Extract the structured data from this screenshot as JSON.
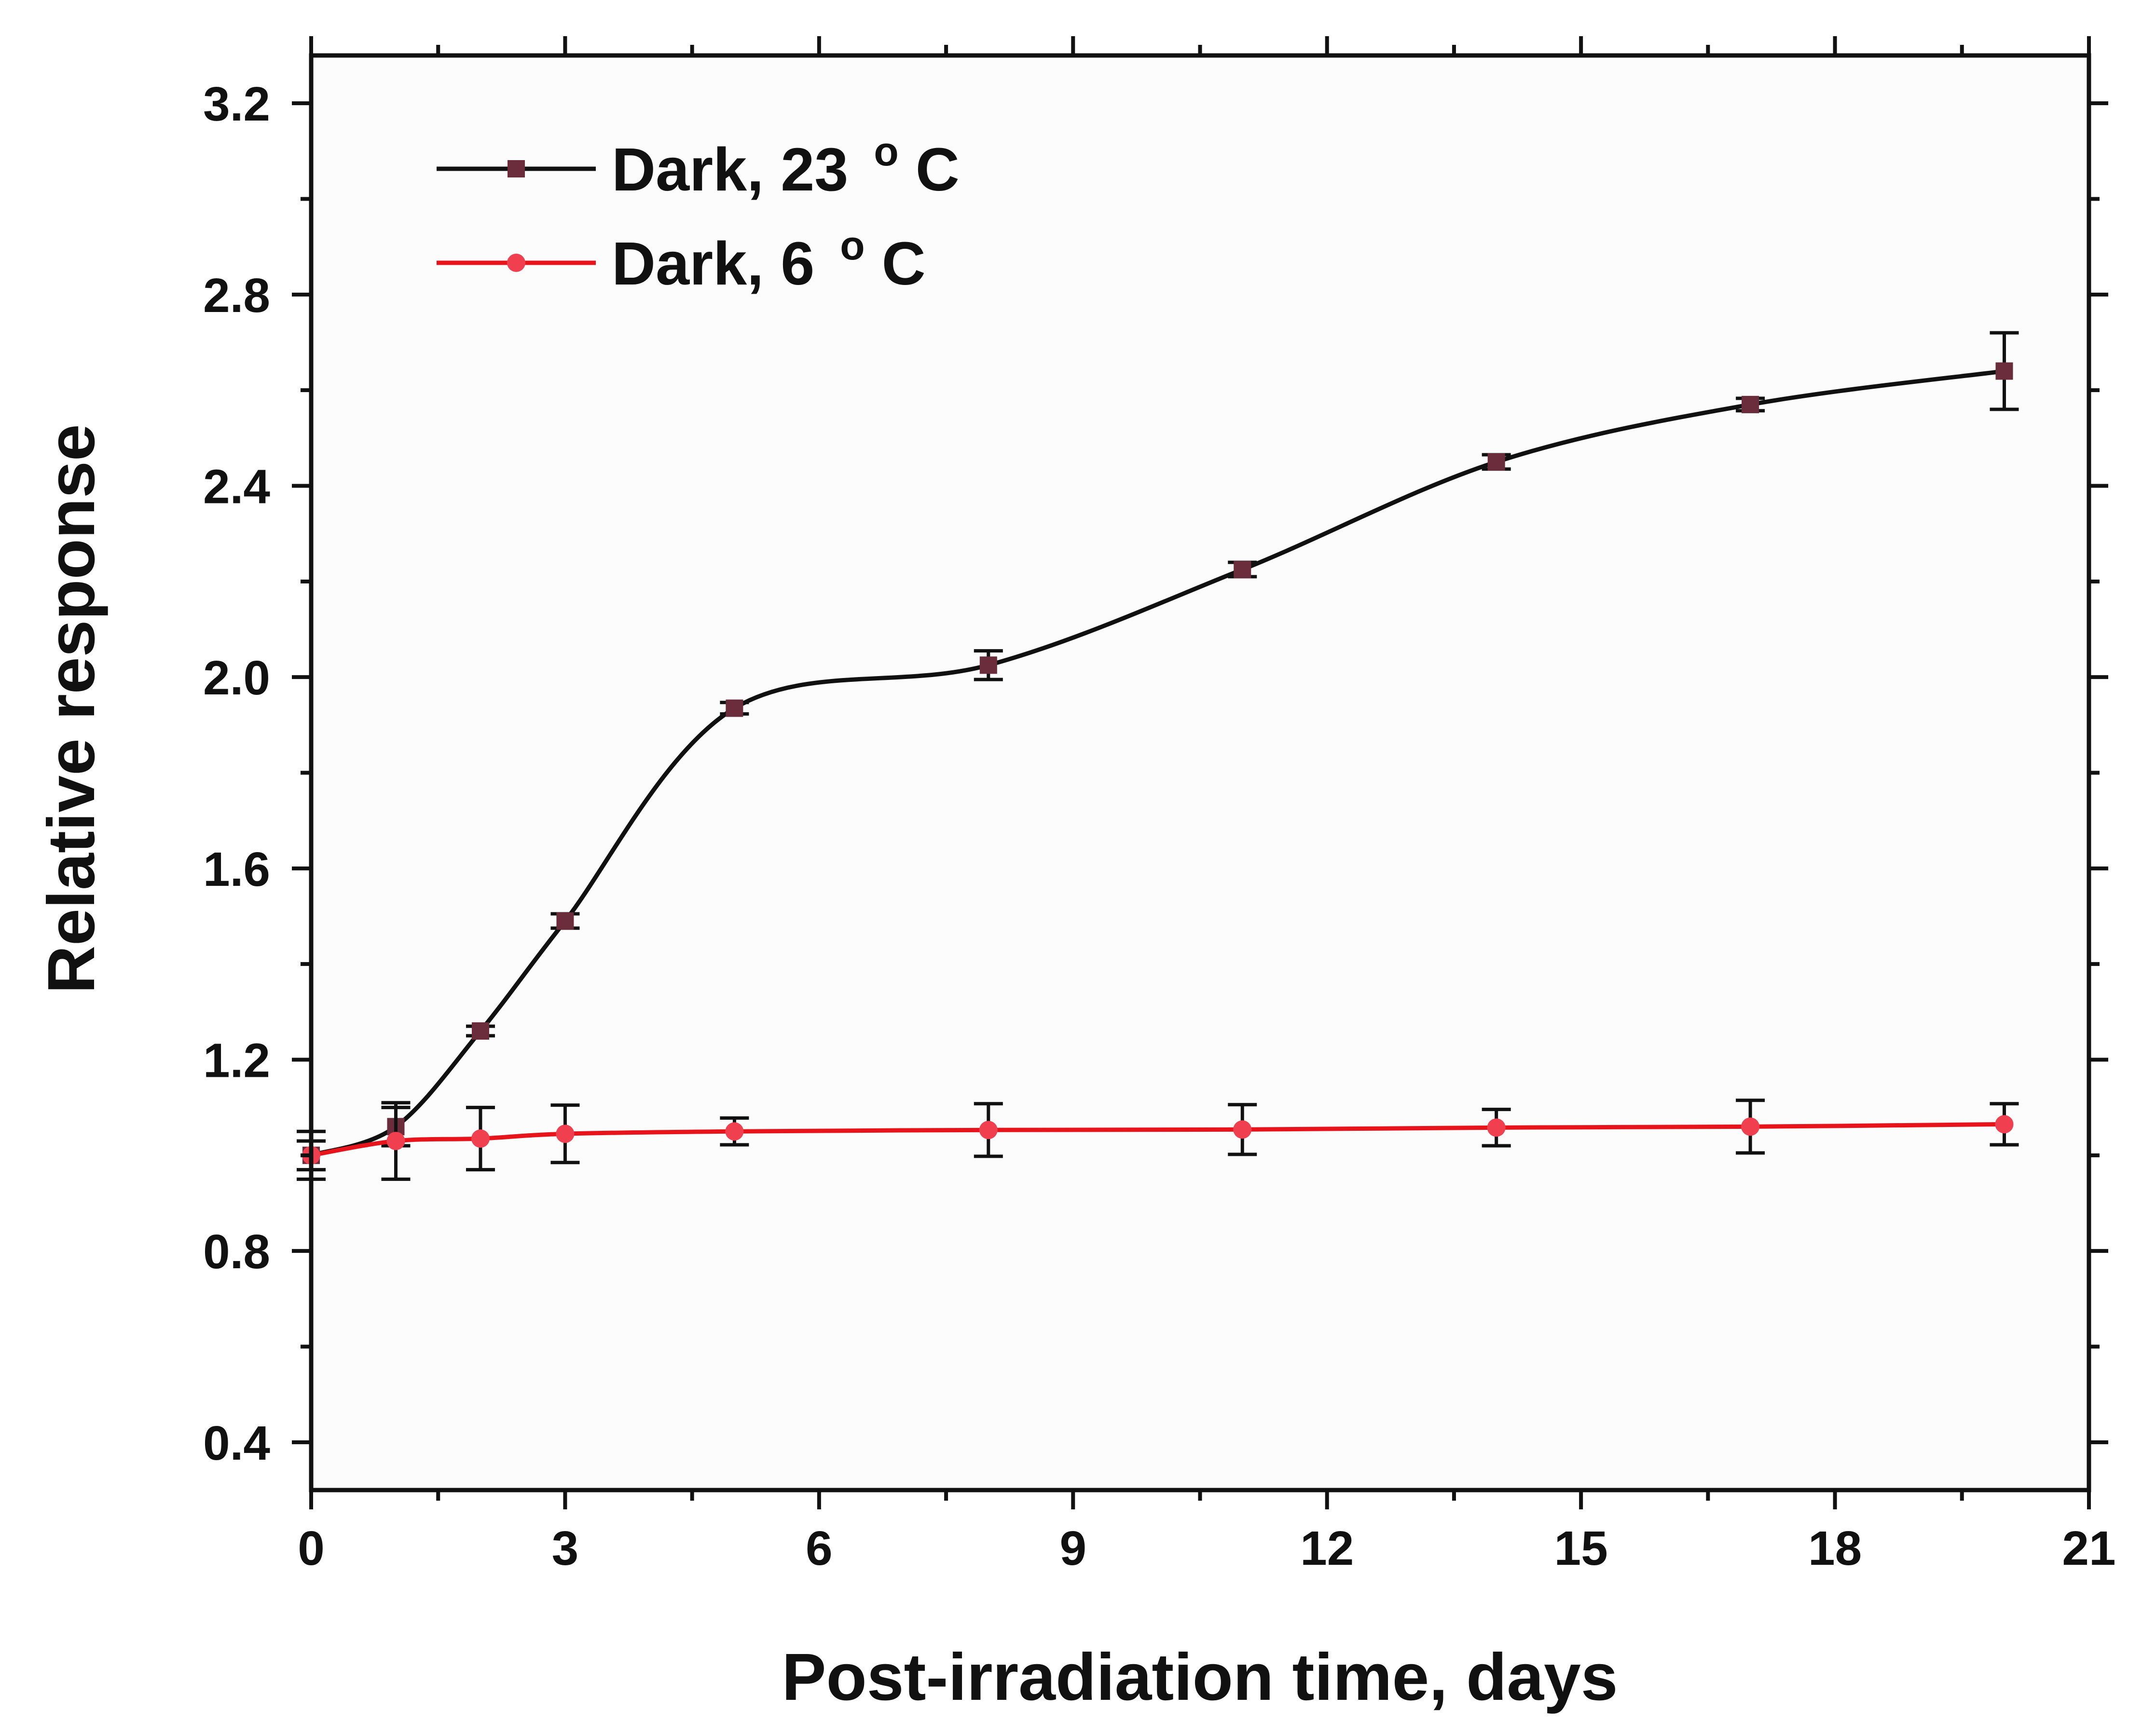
{
  "chart_data": {
    "type": "line",
    "title": "",
    "xlabel": "Post-irradiation time, days",
    "ylabel": "Relative response",
    "xlim": [
      0,
      21
    ],
    "ylim": [
      0.3,
      3.3
    ],
    "xticks": [
      0,
      3,
      6,
      9,
      12,
      15,
      18,
      21
    ],
    "xtick_labels": [
      "0",
      "3",
      "6",
      "9",
      "12",
      "15",
      "18",
      "21"
    ],
    "yticks": [
      0.4,
      0.8,
      1.2,
      1.6,
      2.0,
      2.4,
      2.8,
      3.2
    ],
    "ytick_labels": [
      "0.4",
      "0.8",
      "1.2",
      "1.6",
      "2.0",
      "2.4",
      "2.8",
      "3.2"
    ],
    "legend_position": "top-left",
    "grid": false,
    "series": [
      {
        "name": "Dark, 23",
        "name_unit_sup": "o",
        "name_unit": "C",
        "color": "#111111",
        "marker": "square",
        "marker_color": "#6b2d3c",
        "x": [
          0,
          1,
          2,
          3,
          5,
          8,
          11,
          14,
          17,
          20
        ],
        "y": [
          1.0,
          1.06,
          1.26,
          1.49,
          1.935,
          2.025,
          2.225,
          2.45,
          2.57,
          2.64
        ],
        "err": [
          0.03,
          0.04,
          0.01,
          0.015,
          0.012,
          0.03,
          0.015,
          0.015,
          0.013,
          0.08
        ]
      },
      {
        "name": "Dark, 6",
        "name_unit_sup": "o",
        "name_unit": "C",
        "color": "#e8141c",
        "marker": "circle",
        "marker_color": "#f04050",
        "x": [
          0,
          1,
          2,
          3,
          5,
          8,
          11,
          14,
          17,
          20
        ],
        "y": [
          1.0,
          1.03,
          1.035,
          1.045,
          1.05,
          1.053,
          1.054,
          1.058,
          1.06,
          1.065
        ],
        "err": [
          0.05,
          0.08,
          0.065,
          0.06,
          0.028,
          0.055,
          0.052,
          0.038,
          0.055,
          0.043
        ]
      }
    ]
  }
}
